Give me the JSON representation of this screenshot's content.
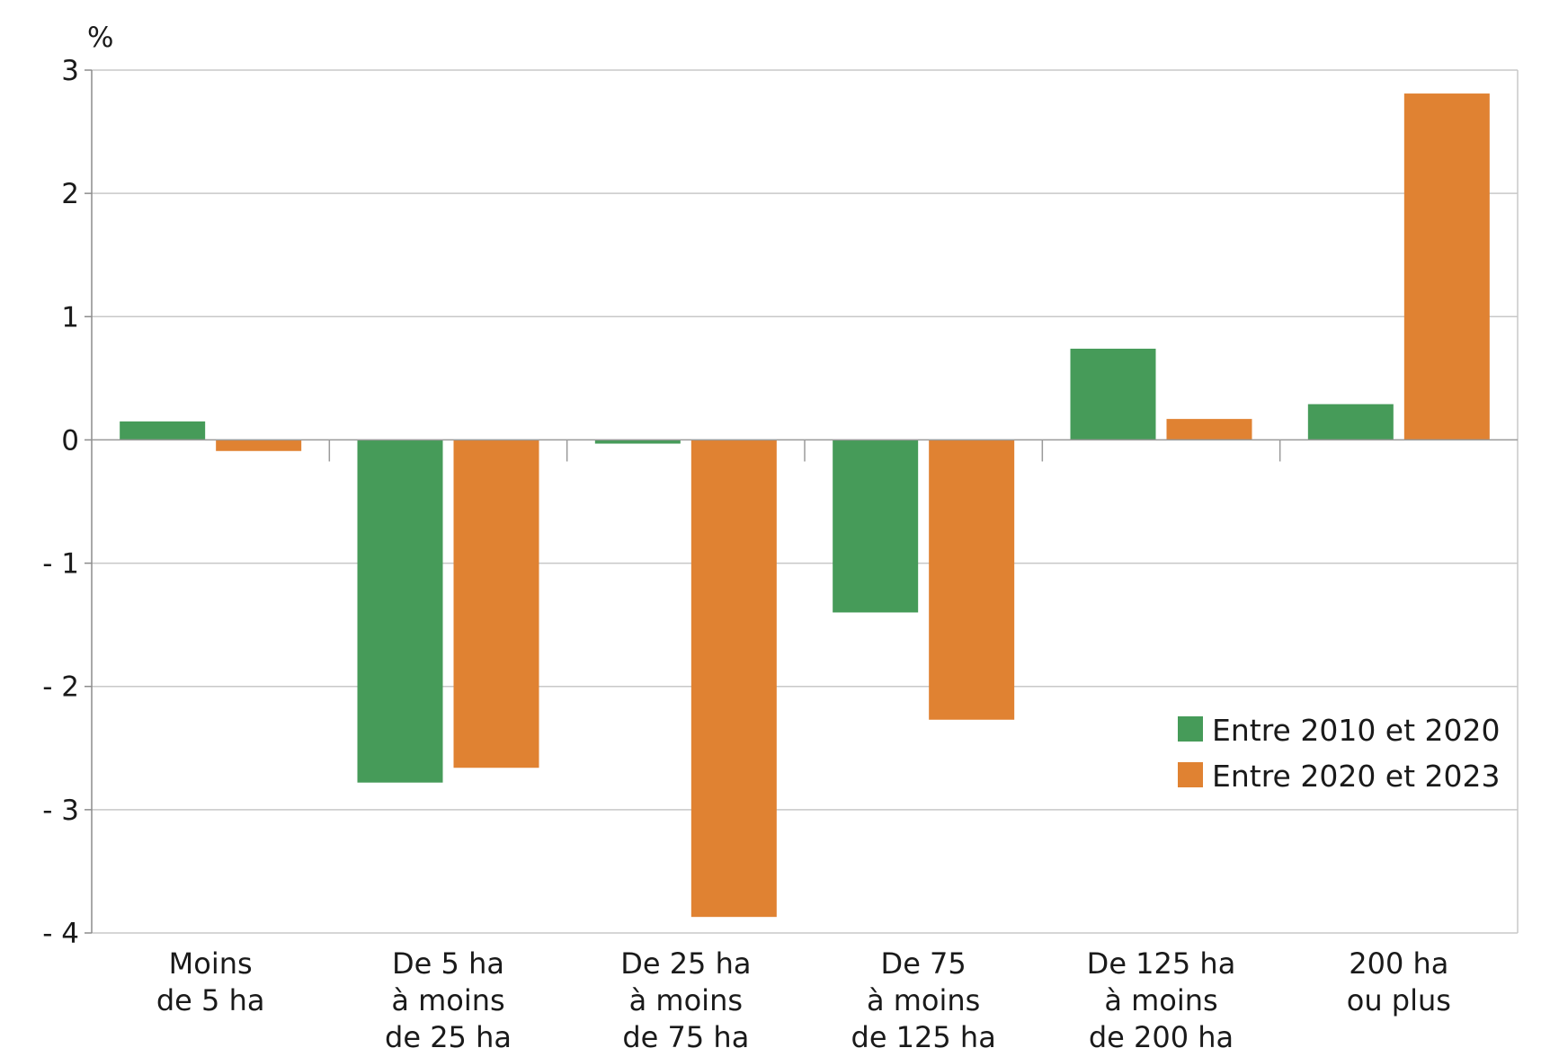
{
  "chart_data": {
    "type": "bar",
    "title": "",
    "ylabel": "%",
    "xlabel": "",
    "ylim": [
      -4,
      3
    ],
    "yticks": [
      3,
      2,
      1,
      0,
      -1,
      -2,
      -3,
      -4
    ],
    "ytick_labels": [
      "3",
      "2",
      "1",
      "0",
      "- 1",
      "- 2",
      "- 3",
      "- 4"
    ],
    "grid": true,
    "legend_position": "bottom-right",
    "categories": [
      [
        "Moins",
        "de 5 ha"
      ],
      [
        "De 5 ha",
        "à moins",
        "de 25 ha"
      ],
      [
        "De 25 ha",
        "à moins",
        "de 75 ha"
      ],
      [
        "De 75",
        "à moins",
        "de 125 ha"
      ],
      [
        "De 125 ha",
        "à moins",
        "de 200 ha"
      ],
      [
        "200 ha",
        "ou plus"
      ]
    ],
    "series": [
      {
        "name": "Entre 2010 et 2020",
        "color": "#469b59",
        "values": [
          0.15,
          -2.78,
          -0.03,
          -1.4,
          0.74,
          0.29
        ]
      },
      {
        "name": "Entre 2020 et 2023",
        "color": "#e08232",
        "values": [
          -0.09,
          -2.66,
          -3.87,
          -2.27,
          0.17,
          2.81
        ]
      }
    ]
  }
}
